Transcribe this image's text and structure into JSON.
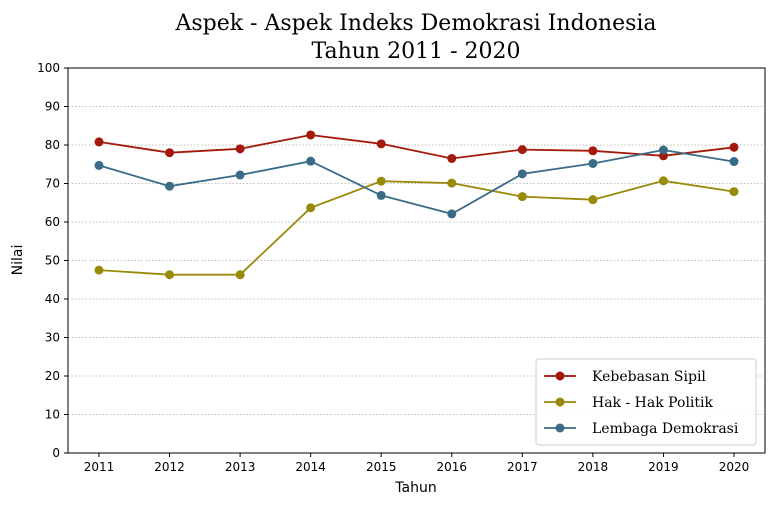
{
  "chart_data": {
    "type": "line",
    "title_lines": [
      "Aspek - Aspek Indeks Demokrasi Indonesia",
      "Tahun 2011 - 2020"
    ],
    "xlabel": "Tahun",
    "ylabel": "Nilai",
    "categories": [
      "2011",
      "2012",
      "2013",
      "2014",
      "2015",
      "2016",
      "2017",
      "2018",
      "2019",
      "2020"
    ],
    "ylim": [
      0,
      100
    ],
    "yticks": [
      "0",
      "10",
      "20",
      "30",
      "40",
      "50",
      "60",
      "70",
      "80",
      "90",
      "100"
    ],
    "grid": "horizontal dotted",
    "legend_position": "bottom-right",
    "series": [
      {
        "name": "Kebebasan Sipil",
        "color": "#a31a0a",
        "values": [
          80.8,
          78.0,
          79.0,
          82.6,
          80.3,
          76.5,
          78.8,
          78.5,
          77.2,
          79.4
        ]
      },
      {
        "name": "Hak - Hak Politik",
        "color": "#998a0a",
        "values": [
          47.5,
          46.3,
          46.3,
          63.7,
          70.6,
          70.1,
          66.6,
          65.8,
          70.7,
          67.9
        ]
      },
      {
        "name": "Lembaga Demokrasi",
        "color": "#3a6c88",
        "values": [
          74.7,
          69.3,
          72.2,
          75.8,
          66.9,
          62.1,
          72.5,
          75.2,
          78.7,
          75.7
        ]
      }
    ]
  }
}
